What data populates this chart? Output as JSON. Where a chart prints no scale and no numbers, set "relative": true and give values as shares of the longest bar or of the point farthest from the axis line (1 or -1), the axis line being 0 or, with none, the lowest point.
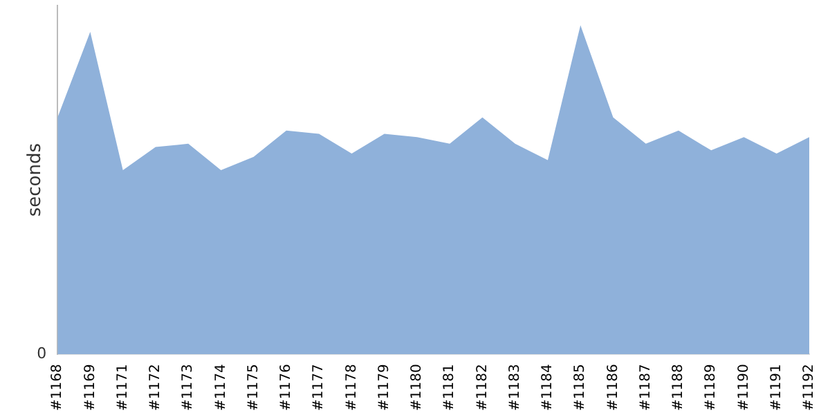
{
  "chart_data": {
    "type": "area",
    "ylabel": "seconds",
    "relative": true,
    "annotations": [
      "0"
    ],
    "grid": false,
    "legend": false,
    "categories": [
      "#1168",
      "#1169",
      "#1171",
      "#1172",
      "#1173",
      "#1174",
      "#1175",
      "#1176",
      "#1177",
      "#1178",
      "#1179",
      "#1180",
      "#1181",
      "#1182",
      "#1183",
      "#1184",
      "#1185",
      "#1186",
      "#1187",
      "#1188",
      "#1189",
      "#1190",
      "#1191",
      "#1192"
    ],
    "series": [
      {
        "color": "#8fb1da",
        "values": [
          0.72,
          0.98,
          0.56,
          0.63,
          0.64,
          0.56,
          0.6,
          0.68,
          0.67,
          0.61,
          0.67,
          0.66,
          0.64,
          0.72,
          0.64,
          0.59,
          1,
          0.72,
          0.64,
          0.68,
          0.62,
          0.66,
          0.61,
          0.66
        ]
      }
    ]
  }
}
